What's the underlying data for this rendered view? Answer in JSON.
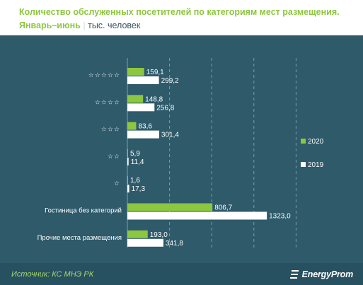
{
  "header": {
    "title": "Количество обслуженных посетителей по категориям мест размещения.",
    "period": "Январь–июнь",
    "separator": "|",
    "unit": "тыс. человек"
  },
  "footer": {
    "source": "Источник: КС МНЭ РК",
    "logo_text": "EnergyProm"
  },
  "colors": {
    "series_2020": "#8dc63f",
    "series_2019": "#ffffff",
    "panel_bg": "#2e5a6a",
    "footer_bg": "#275060",
    "grid": "#7f9ea9",
    "label_text": "#ffffff"
  },
  "chart_data": {
    "type": "bar",
    "orientation": "horizontal",
    "title": "Количество обслуженных посетителей по категориям мест размещения. Январь–июнь",
    "xlabel": "",
    "ylabel": "",
    "unit": "тыс. человек",
    "categories": [
      "☆☆☆☆☆",
      "☆☆☆☆",
      "☆☆☆",
      "☆☆",
      "☆",
      "Гостиница без категорий",
      "Прочие места размещения"
    ],
    "series": [
      {
        "name": "2020",
        "values": [
          159.1,
          148.8,
          83.6,
          5.9,
          1.6,
          806.7,
          193.0
        ],
        "labels": [
          "159,1",
          "148,8",
          "83,6",
          "5,9",
          "1,6",
          "806,7",
          "193,0"
        ]
      },
      {
        "name": "2019",
        "values": [
          299.2,
          256.8,
          301.4,
          11.4,
          17.3,
          1323.0,
          341.8
        ],
        "labels": [
          "299,2",
          "256,8",
          "301,4",
          "11,4",
          "17,3",
          "1323,0",
          "341,8"
        ]
      }
    ],
    "xlim": [
      0,
      1600
    ],
    "grid": true,
    "grid_style": "dashed vertical",
    "legend_position": "right",
    "data_labels": true
  }
}
